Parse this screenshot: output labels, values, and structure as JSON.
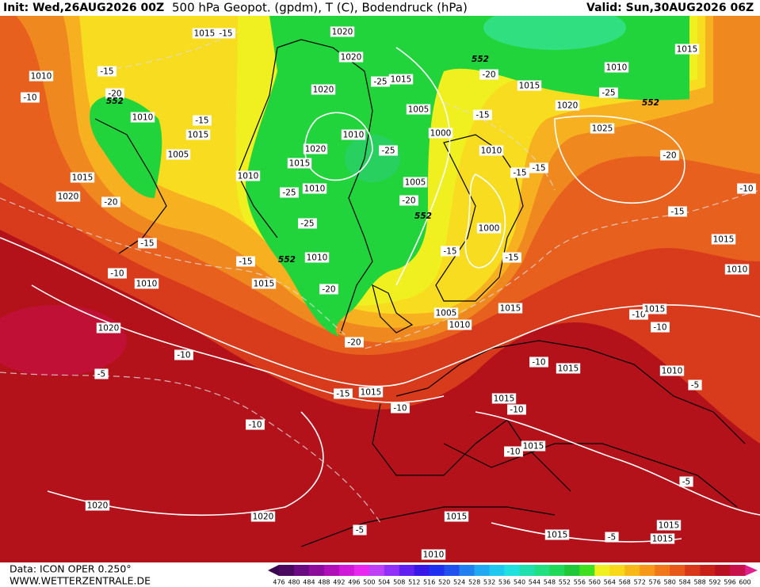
{
  "header": {
    "init": "Init: Wed,26AUG2026 00Z",
    "title": "500 hPa Geopot. (gpdm), T (C), Bodendruck (hPa)",
    "valid": "Valid: Sun,30AUG2026 06Z"
  },
  "footer": {
    "data_source": "Data: ICON OPER 0.250°",
    "website": "WWW.WETTERZENTRALE.DE"
  },
  "colorbar": {
    "labels": [
      476,
      480,
      484,
      488,
      492,
      496,
      500,
      504,
      508,
      512,
      516,
      520,
      524,
      528,
      532,
      536,
      540,
      544,
      548,
      552,
      556,
      560,
      564,
      568,
      572,
      576,
      580,
      584,
      588,
      592,
      596,
      600
    ],
    "colors": [
      "#4a0860",
      "#6a0a80",
      "#8c0c9c",
      "#b010b8",
      "#d018d8",
      "#e828f0",
      "#c040f8",
      "#9030f8",
      "#6020f0",
      "#3818e8",
      "#2030f0",
      "#2050f0",
      "#2080f0",
      "#20a8f0",
      "#20c8f0",
      "#20e0e0",
      "#20e0b0",
      "#20e080",
      "#20d858",
      "#20c838",
      "#40e020",
      "#f0f020",
      "#f8d818",
      "#f8b818",
      "#f89818",
      "#f07818",
      "#e85818",
      "#d83818",
      "#c82018",
      "#b81020",
      "#c8104a"
    ]
  },
  "map_labels": [
    "1015",
    "-15",
    "1020",
    "1020",
    "1010",
    "-15",
    "-10",
    "-20",
    "552",
    "1010",
    "-15",
    "1015",
    "1005",
    "1020",
    "-25",
    "1015",
    "1005",
    "1000",
    "1010",
    "1020",
    "1015",
    "-25",
    "1010",
    "-25",
    "1010",
    "1005",
    "-20",
    "552",
    "-25",
    "1015",
    "1020",
    "-20",
    "-15",
    "-10",
    "1010",
    "-15",
    "552",
    "1010",
    "1015",
    "-20",
    "-20",
    "1020",
    "-10",
    "-5",
    "-15",
    "1015",
    "-10",
    "-10",
    "1020",
    "1020",
    "552",
    "-20",
    "1010",
    "1015",
    "-25",
    "1020",
    "552",
    "1015",
    "1025",
    "-15",
    "1010",
    "-15",
    "-15",
    "-20",
    "-15",
    "-10",
    "1000",
    "-15",
    "-15",
    "1015",
    "1010",
    "1015",
    "-10",
    "1015",
    "-10",
    "1005",
    "1010",
    "-10",
    "1015",
    "1010",
    "-5",
    "1015",
    "-10",
    "1015",
    "-10",
    "-5",
    "1015",
    "1015",
    "-5",
    "1015",
    "-5",
    "1015",
    "1010"
  ]
}
